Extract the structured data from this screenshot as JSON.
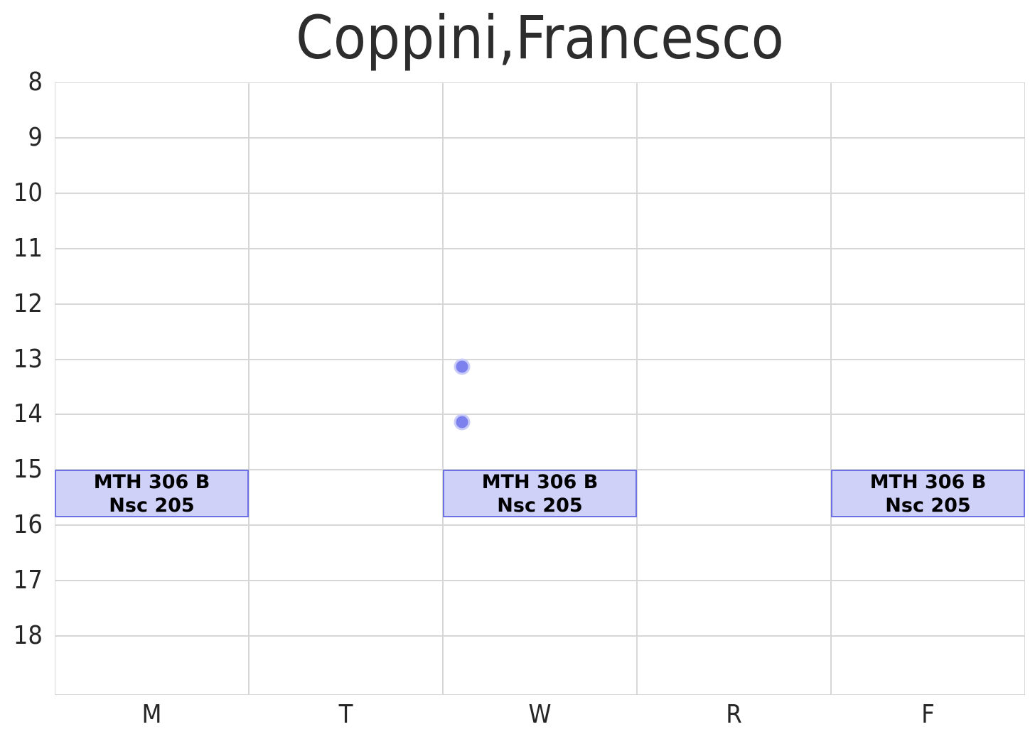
{
  "chart_data": {
    "type": "schedule",
    "title": "Coppini,Francesco",
    "x_categories": [
      "M",
      "T",
      "W",
      "R",
      "F"
    ],
    "y_axis": {
      "unit": "hour-of-day",
      "ticks": [
        8,
        9,
        10,
        11,
        12,
        13,
        14,
        15,
        16,
        17,
        18
      ],
      "min": 8,
      "max": 19.1,
      "inverted": true
    },
    "grid": true,
    "legend": "none",
    "events": [
      {
        "day": "M",
        "day_index": 0,
        "start_hour": 15.0,
        "end_hour": 15.83,
        "course": "MTH 306 B",
        "room": "Nsc 205"
      },
      {
        "day": "W",
        "day_index": 2,
        "start_hour": 15.0,
        "end_hour": 15.83,
        "course": "MTH 306 B",
        "room": "Nsc 205"
      },
      {
        "day": "F",
        "day_index": 4,
        "start_hour": 15.0,
        "end_hour": 15.83,
        "course": "MTH 306 B",
        "room": "Nsc 205"
      }
    ],
    "points": [
      {
        "day": "W",
        "day_coord": 2.1,
        "hour": 13.13
      },
      {
        "day": "W",
        "day_coord": 2.1,
        "hour": 14.13
      }
    ],
    "colors": {
      "event_fill": "#cfd1f8",
      "event_border": "#6d71e4",
      "point_fill": "#7d81ee",
      "point_ring": "#c9ccf9",
      "grid": "#d7d7d7",
      "title_text": "#2d2d2d",
      "tick_text": "#262626",
      "event_text": "#000000",
      "background": "#ffffff"
    }
  }
}
